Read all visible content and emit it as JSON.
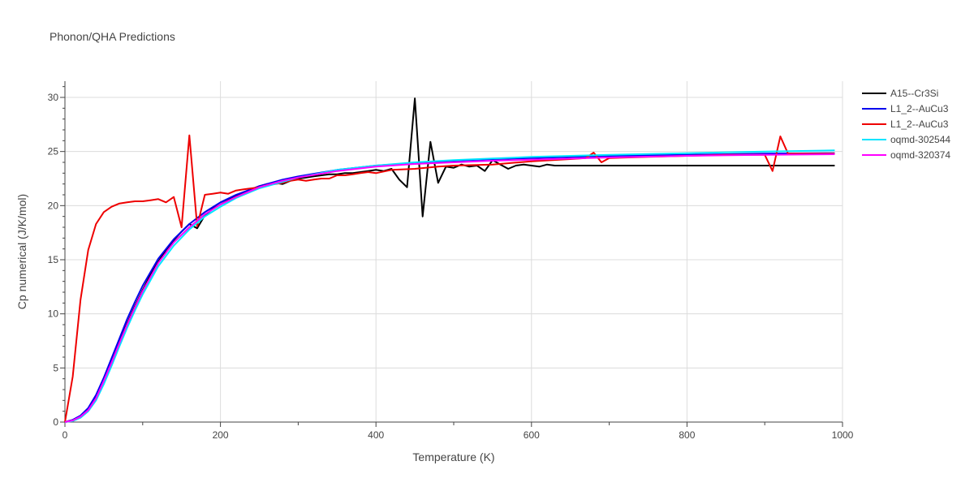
{
  "chart_data": {
    "type": "line",
    "title": "Phonon/QHA Predictions",
    "xlabel": "Temperature (K)",
    "ylabel": "Cp numerical (J/K/mol)",
    "xlim": [
      0,
      1000
    ],
    "ylim": [
      0,
      31.5
    ],
    "xticks": [
      0,
      200,
      400,
      600,
      800,
      1000
    ],
    "yticks": [
      0,
      5,
      10,
      15,
      20,
      25,
      30
    ],
    "grid": true,
    "legend_position": "top-right",
    "series": [
      {
        "name": "A15--Cr3Si",
        "color": "#000000",
        "x": [
          0,
          10,
          20,
          30,
          40,
          50,
          60,
          70,
          80,
          90,
          100,
          110,
          120,
          130,
          140,
          150,
          160,
          170,
          180,
          190,
          200,
          210,
          220,
          230,
          240,
          250,
          260,
          270,
          280,
          290,
          300,
          310,
          320,
          330,
          340,
          350,
          360,
          370,
          380,
          390,
          400,
          410,
          420,
          430,
          440,
          450,
          460,
          470,
          480,
          490,
          500,
          510,
          520,
          530,
          540,
          550,
          560,
          570,
          580,
          590,
          600,
          610,
          620,
          630,
          640,
          650,
          660,
          680,
          700,
          750,
          800,
          850,
          900,
          950,
          990
        ],
        "y": [
          0,
          0.2,
          0.5,
          1.2,
          2.3,
          3.9,
          5.6,
          7.4,
          9.1,
          10.7,
          12.2,
          13.6,
          14.8,
          15.9,
          16.8,
          17.6,
          18.3,
          17.9,
          19.1,
          19.7,
          20.1,
          20.5,
          20.9,
          21.2,
          21.5,
          21.8,
          22.0,
          22.1,
          22.0,
          22.3,
          22.5,
          22.6,
          22.7,
          22.8,
          22.9,
          22.9,
          23.0,
          23.0,
          23.1,
          23.2,
          23.3,
          23.2,
          23.4,
          22.4,
          21.7,
          29.9,
          19.0,
          25.9,
          22.1,
          23.6,
          23.5,
          23.8,
          23.6,
          23.7,
          23.2,
          24.2,
          23.8,
          23.4,
          23.7,
          23.8,
          23.7,
          23.6,
          23.8,
          23.7,
          23.7,
          23.7,
          23.7,
          23.7,
          23.7,
          23.7,
          23.7,
          23.7,
          23.7,
          23.7,
          23.7
        ]
      },
      {
        "name": "L1_2--AuCu3",
        "color": "#0000ee",
        "x": [
          0,
          10,
          20,
          30,
          40,
          50,
          60,
          70,
          80,
          90,
          100,
          120,
          140,
          160,
          180,
          200,
          220,
          250,
          280,
          300,
          350,
          400,
          450,
          500,
          550,
          600,
          700,
          800,
          900,
          990
        ],
        "y": [
          0,
          0.2,
          0.6,
          1.3,
          2.5,
          4.1,
          5.9,
          7.7,
          9.5,
          11.1,
          12.6,
          15.1,
          16.9,
          18.3,
          19.4,
          20.3,
          21.0,
          21.8,
          22.4,
          22.7,
          23.3,
          23.7,
          23.95,
          24.15,
          24.3,
          24.4,
          24.6,
          24.7,
          24.8,
          24.85
        ]
      },
      {
        "name": "L1_2--AuCu3",
        "color": "#ee0000",
        "x": [
          0,
          10,
          20,
          30,
          40,
          50,
          60,
          70,
          80,
          90,
          100,
          110,
          120,
          130,
          140,
          150,
          160,
          170,
          180,
          190,
          200,
          210,
          220,
          230,
          240,
          250,
          260,
          270,
          280,
          290,
          300,
          310,
          320,
          330,
          340,
          350,
          360,
          370,
          380,
          390,
          400,
          420,
          450,
          480,
          500,
          550,
          600,
          650,
          670,
          680,
          690,
          700,
          750,
          800,
          850,
          900,
          910,
          920,
          930,
          950,
          990
        ],
        "y": [
          0,
          4.2,
          11.3,
          15.9,
          18.3,
          19.4,
          19.9,
          20.2,
          20.3,
          20.4,
          20.4,
          20.5,
          20.6,
          20.3,
          20.8,
          18.0,
          26.5,
          18.1,
          21.0,
          21.1,
          21.2,
          21.1,
          21.4,
          21.5,
          21.6,
          21.7,
          21.9,
          22.0,
          22.1,
          22.3,
          22.4,
          22.3,
          22.4,
          22.5,
          22.5,
          22.8,
          22.8,
          22.9,
          23.0,
          23.1,
          23.0,
          23.3,
          23.4,
          23.6,
          23.7,
          23.8,
          24.1,
          24.3,
          24.4,
          24.9,
          24.0,
          24.4,
          24.5,
          24.6,
          24.7,
          24.7,
          23.2,
          26.4,
          24.8,
          24.8,
          24.8
        ]
      },
      {
        "name": "oqmd-302544",
        "color": "#00e5ff",
        "x": [
          0,
          10,
          20,
          30,
          40,
          50,
          60,
          70,
          80,
          90,
          100,
          120,
          140,
          160,
          180,
          200,
          220,
          250,
          280,
          300,
          350,
          400,
          450,
          500,
          550,
          600,
          700,
          800,
          900,
          990
        ],
        "y": [
          0,
          0.1,
          0.4,
          1.0,
          2.0,
          3.5,
          5.2,
          7.0,
          8.7,
          10.3,
          11.8,
          14.4,
          16.3,
          17.8,
          19.0,
          19.9,
          20.7,
          21.6,
          22.2,
          22.6,
          23.3,
          23.7,
          24.0,
          24.2,
          24.35,
          24.5,
          24.7,
          24.85,
          25.0,
          25.1
        ]
      },
      {
        "name": "oqmd-320374",
        "color": "#ff00ff",
        "x": [
          0,
          10,
          20,
          30,
          40,
          50,
          60,
          70,
          80,
          90,
          100,
          120,
          140,
          160,
          180,
          200,
          220,
          250,
          280,
          300,
          350,
          400,
          450,
          500,
          550,
          600,
          700,
          800,
          900,
          990
        ],
        "y": [
          0,
          0.15,
          0.5,
          1.1,
          2.2,
          3.8,
          5.5,
          7.3,
          9.0,
          10.6,
          12.1,
          14.7,
          16.6,
          18.0,
          19.2,
          20.1,
          20.8,
          21.7,
          22.3,
          22.6,
          23.2,
          23.6,
          23.85,
          24.0,
          24.15,
          24.25,
          24.45,
          24.6,
          24.7,
          24.75
        ]
      }
    ]
  }
}
